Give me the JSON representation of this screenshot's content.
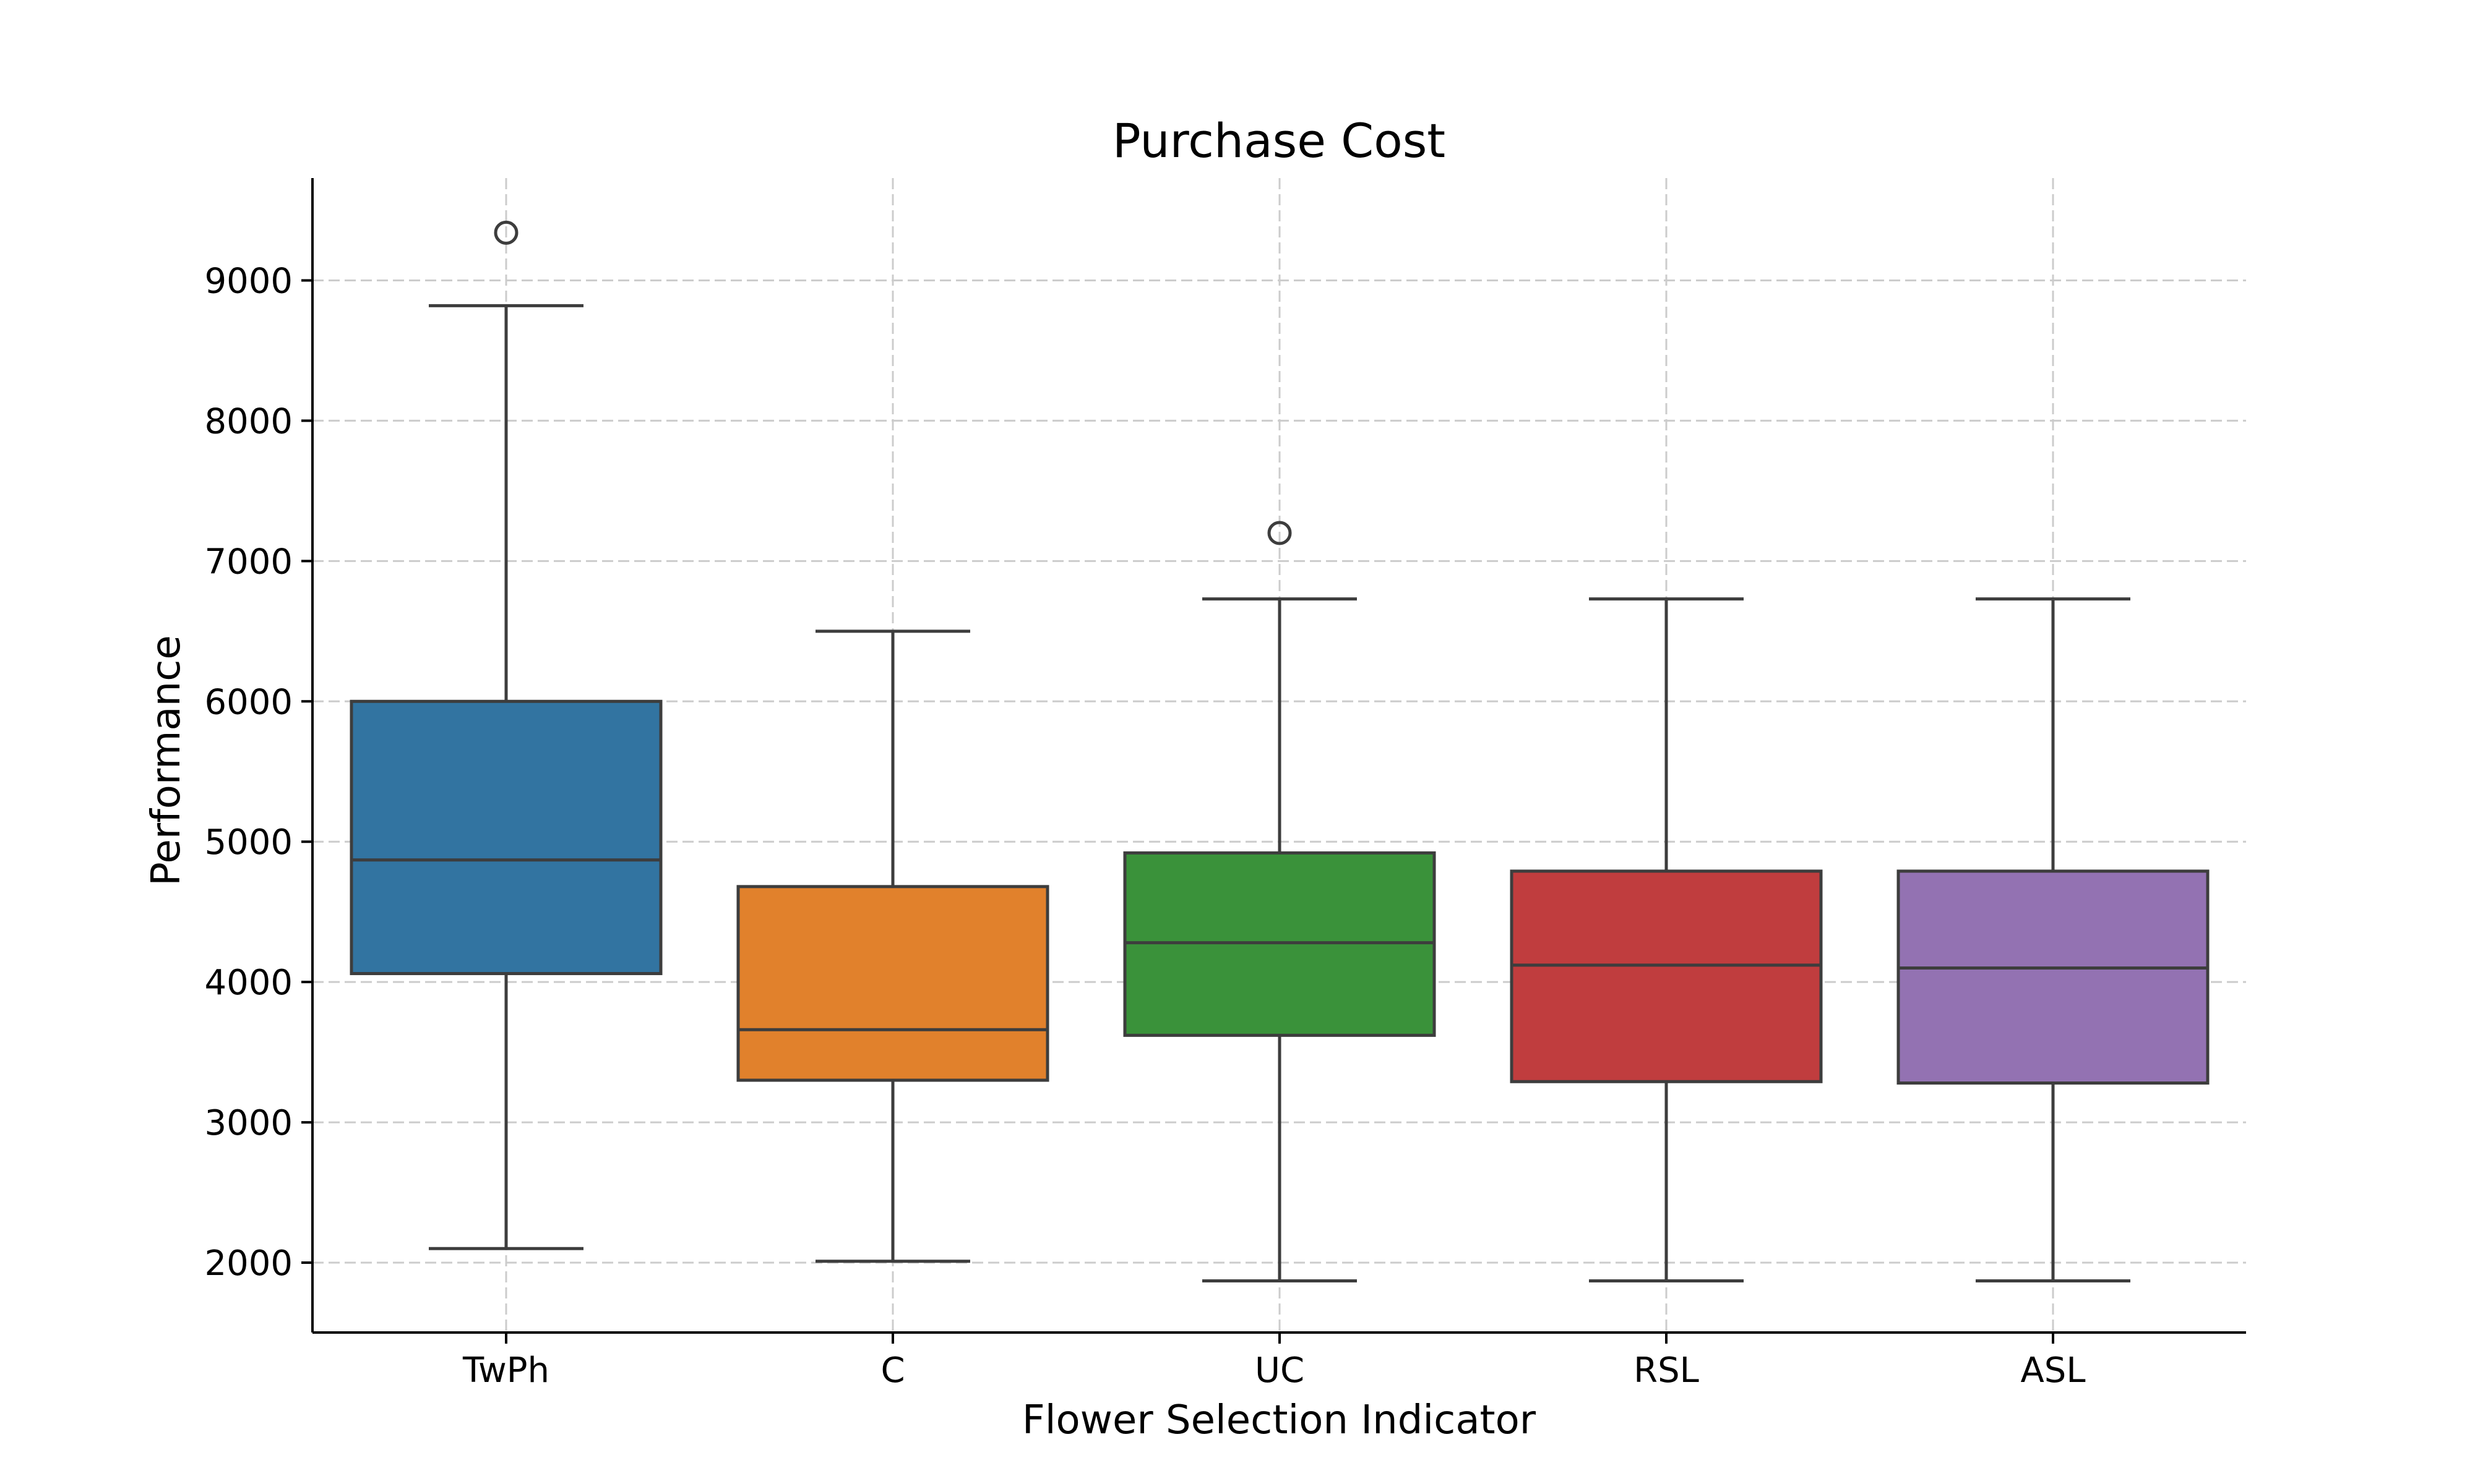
{
  "chart_data": {
    "type": "box",
    "title": "Purchase Cost",
    "xlabel": "Flower Selection Indicator",
    "ylabel": "Performance",
    "ylim": [
      1500,
      9730
    ],
    "yticks": [
      2000,
      3000,
      4000,
      5000,
      6000,
      7000,
      8000,
      9000
    ],
    "grid": true,
    "categories": [
      "TwPh",
      "C",
      "UC",
      "RSL",
      "ASL"
    ],
    "series": [
      {
        "category": "TwPh",
        "color": "#3274a1",
        "whisker_low": 2100,
        "q1": 4060,
        "median": 4870,
        "q3": 6000,
        "whisker_high": 8820,
        "outliers": [
          9340
        ]
      },
      {
        "category": "C",
        "color": "#e1812c",
        "whisker_low": 2010,
        "q1": 3300,
        "median": 3660,
        "q3": 4680,
        "whisker_high": 6500,
        "outliers": []
      },
      {
        "category": "UC",
        "color": "#3a923a",
        "whisker_low": 1870,
        "q1": 3620,
        "median": 4280,
        "q3": 4920,
        "whisker_high": 6730,
        "outliers": [
          7200
        ]
      },
      {
        "category": "RSL",
        "color": "#c03d3e",
        "whisker_low": 1870,
        "q1": 3290,
        "median": 4120,
        "q3": 4790,
        "whisker_high": 6730,
        "outliers": []
      },
      {
        "category": "ASL",
        "color": "#9372b2",
        "whisker_low": 1870,
        "q1": 3280,
        "median": 4100,
        "q3": 4790,
        "whisker_high": 6730,
        "outliers": []
      }
    ]
  }
}
